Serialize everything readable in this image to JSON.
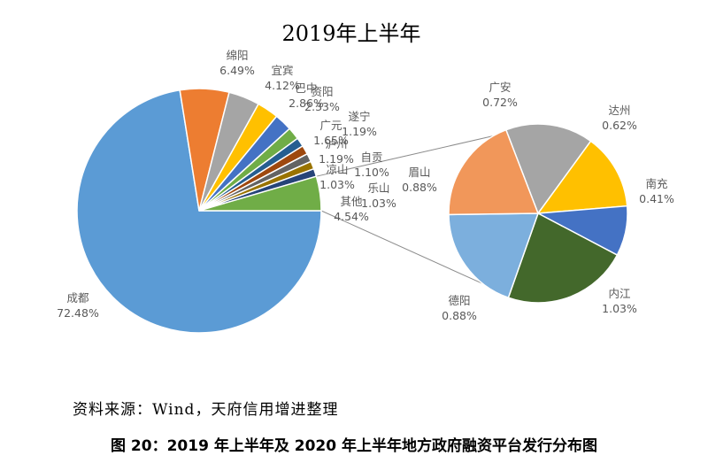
{
  "chart_data": {
    "type": "pie",
    "title": "2019年上半年",
    "main_pie": {
      "slices": [
        {
          "name": "成都",
          "value": 72.48,
          "label": "72.48%",
          "color": "#5B9BD5"
        },
        {
          "name": "绵阳",
          "value": 6.49,
          "label": "6.49%",
          "color": "#ED7D31"
        },
        {
          "name": "宜宾",
          "value": 4.12,
          "label": "4.12%",
          "color": "#A5A5A5"
        },
        {
          "name": "巴中",
          "value": 2.86,
          "label": "2.86%",
          "color": "#FFC000"
        },
        {
          "name": "资阳",
          "value": 2.33,
          "label": "2.33%",
          "color": "#4472C4"
        },
        {
          "name": "广元",
          "value": 1.65,
          "label": "1.65%",
          "color": "#70AD47"
        },
        {
          "name": "遂宁",
          "value": 1.19,
          "label": "1.19%",
          "color": "#255E91"
        },
        {
          "name": "泸州",
          "value": 1.19,
          "label": "1.19%",
          "color": "#9E480E"
        },
        {
          "name": "自贡",
          "value": 1.1,
          "label": "1.10%",
          "color": "#636363"
        },
        {
          "name": "凉山",
          "value": 1.03,
          "label": "1.03%",
          "color": "#997300"
        },
        {
          "name": "乐山",
          "value": 1.03,
          "label": "1.03%",
          "color": "#264478"
        },
        {
          "name": "其他",
          "value": 4.54,
          "label": "4.54%",
          "color": "#70AD47"
        }
      ]
    },
    "secondary_pie": {
      "slices": [
        {
          "name": "广安",
          "value": 0.72,
          "label": "0.72%",
          "color": "#A5A5A5"
        },
        {
          "name": "达州",
          "value": 0.62,
          "label": "0.62%",
          "color": "#FFC000"
        },
        {
          "name": "南充",
          "value": 0.41,
          "label": "0.41%",
          "color": "#4472C4"
        },
        {
          "name": "内江",
          "value": 1.03,
          "label": "1.03%",
          "color": "#43682B"
        },
        {
          "name": "德阳",
          "value": 0.88,
          "label": "0.88%",
          "color": "#7CAFDD"
        },
        {
          "name": "眉山",
          "value": 0.88,
          "label": "0.88%",
          "color": "#F1975A"
        }
      ]
    },
    "legend": "none"
  },
  "source": "资料来源：Wind，天府信用增进整理",
  "caption": "图 20：2019 年上半年及 2020 年上半年地方政府融资平台发行分布图"
}
